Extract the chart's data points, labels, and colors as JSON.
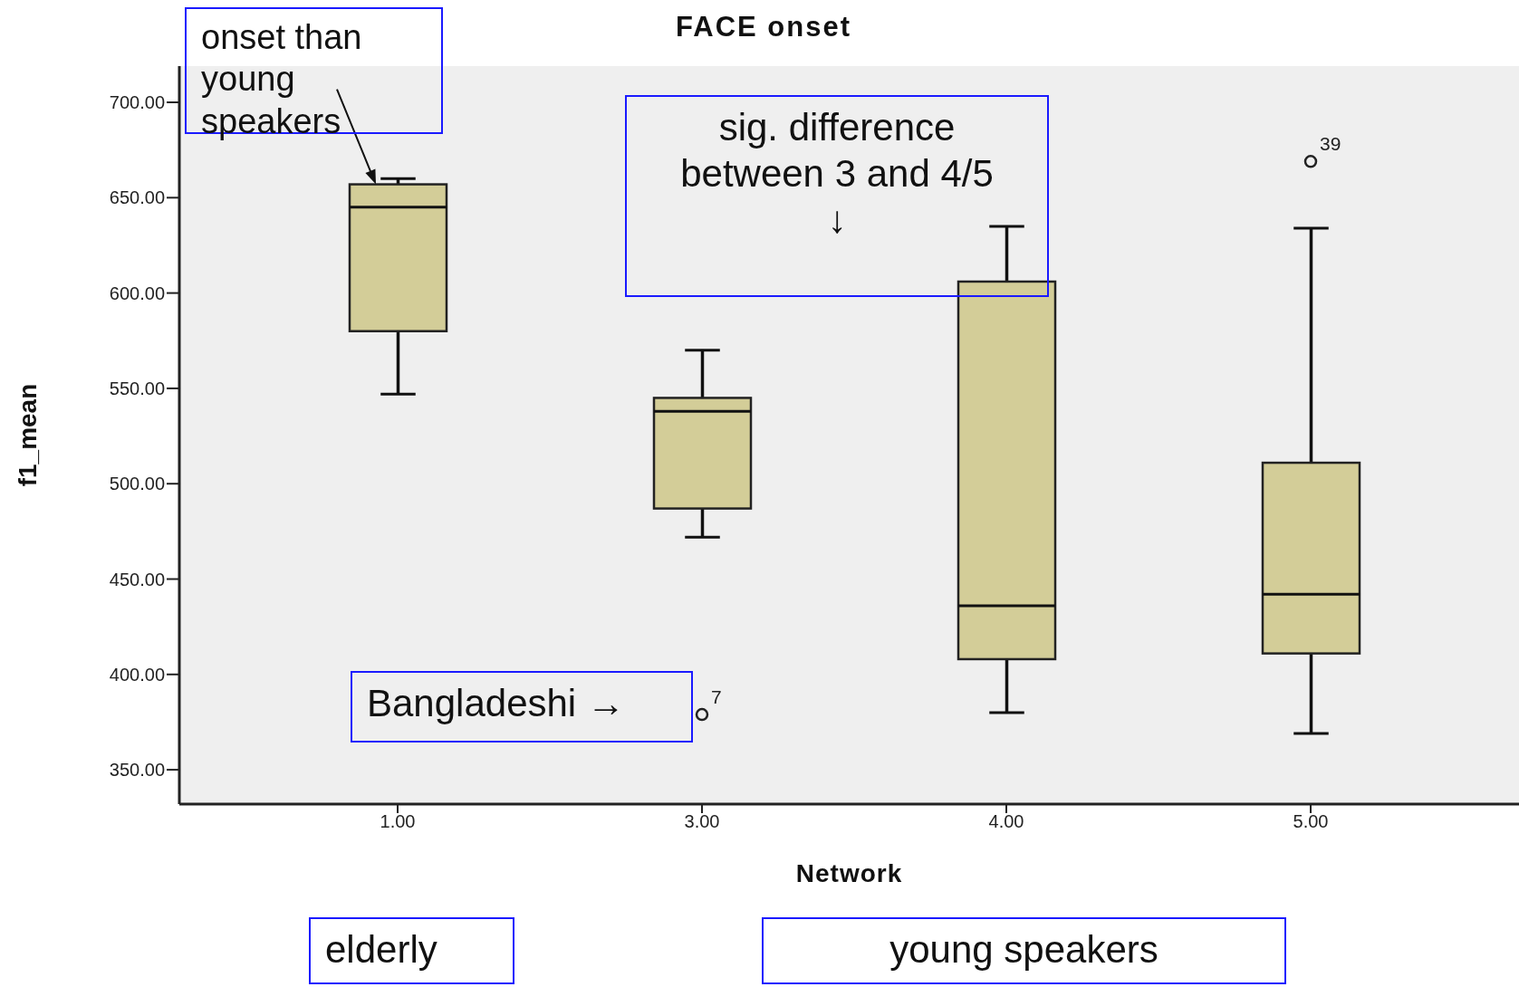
{
  "chart_data": {
    "type": "box",
    "title": "FACE onset",
    "xlabel": "Network",
    "ylabel": "f1_mean",
    "categories": [
      "1.00",
      "3.00",
      "4.00",
      "5.00"
    ],
    "color": "#d3cd98",
    "boxes": [
      {
        "low": 547,
        "q1": 580,
        "median": 645,
        "q3": 657,
        "high": 660
      },
      {
        "low": 472,
        "q1": 487,
        "median": 538,
        "q3": 545,
        "high": 570,
        "outliers": [
          379
        ]
      },
      {
        "low": 380,
        "q1": 408,
        "median": 436,
        "q3": 606,
        "high": 635
      },
      {
        "low": 369,
        "q1": 411,
        "median": 442,
        "q3": 511,
        "high": 634,
        "outliers": [
          669
        ]
      }
    ],
    "ylim": [
      332,
      719
    ],
    "yticks": [
      {
        "value": 350,
        "label": "350.00"
      },
      {
        "value": 400,
        "label": "400.00"
      },
      {
        "value": 450,
        "label": "450.00"
      },
      {
        "value": 500,
        "label": "500.00"
      },
      {
        "value": 550,
        "label": "550.00"
      },
      {
        "value": 600,
        "label": "600.00"
      },
      {
        "value": 650,
        "label": "650.00"
      },
      {
        "value": 700,
        "label": "700.00"
      }
    ],
    "annotations": [
      {
        "text": "onset than\nyoung\nspeakers",
        "x": "1.00",
        "y": 657
      },
      "sig. difference\nbetween 3 and 4/5\n↓",
      "Bangladeshi →",
      "elderly",
      "young speakers",
      "7",
      "39"
    ]
  }
}
